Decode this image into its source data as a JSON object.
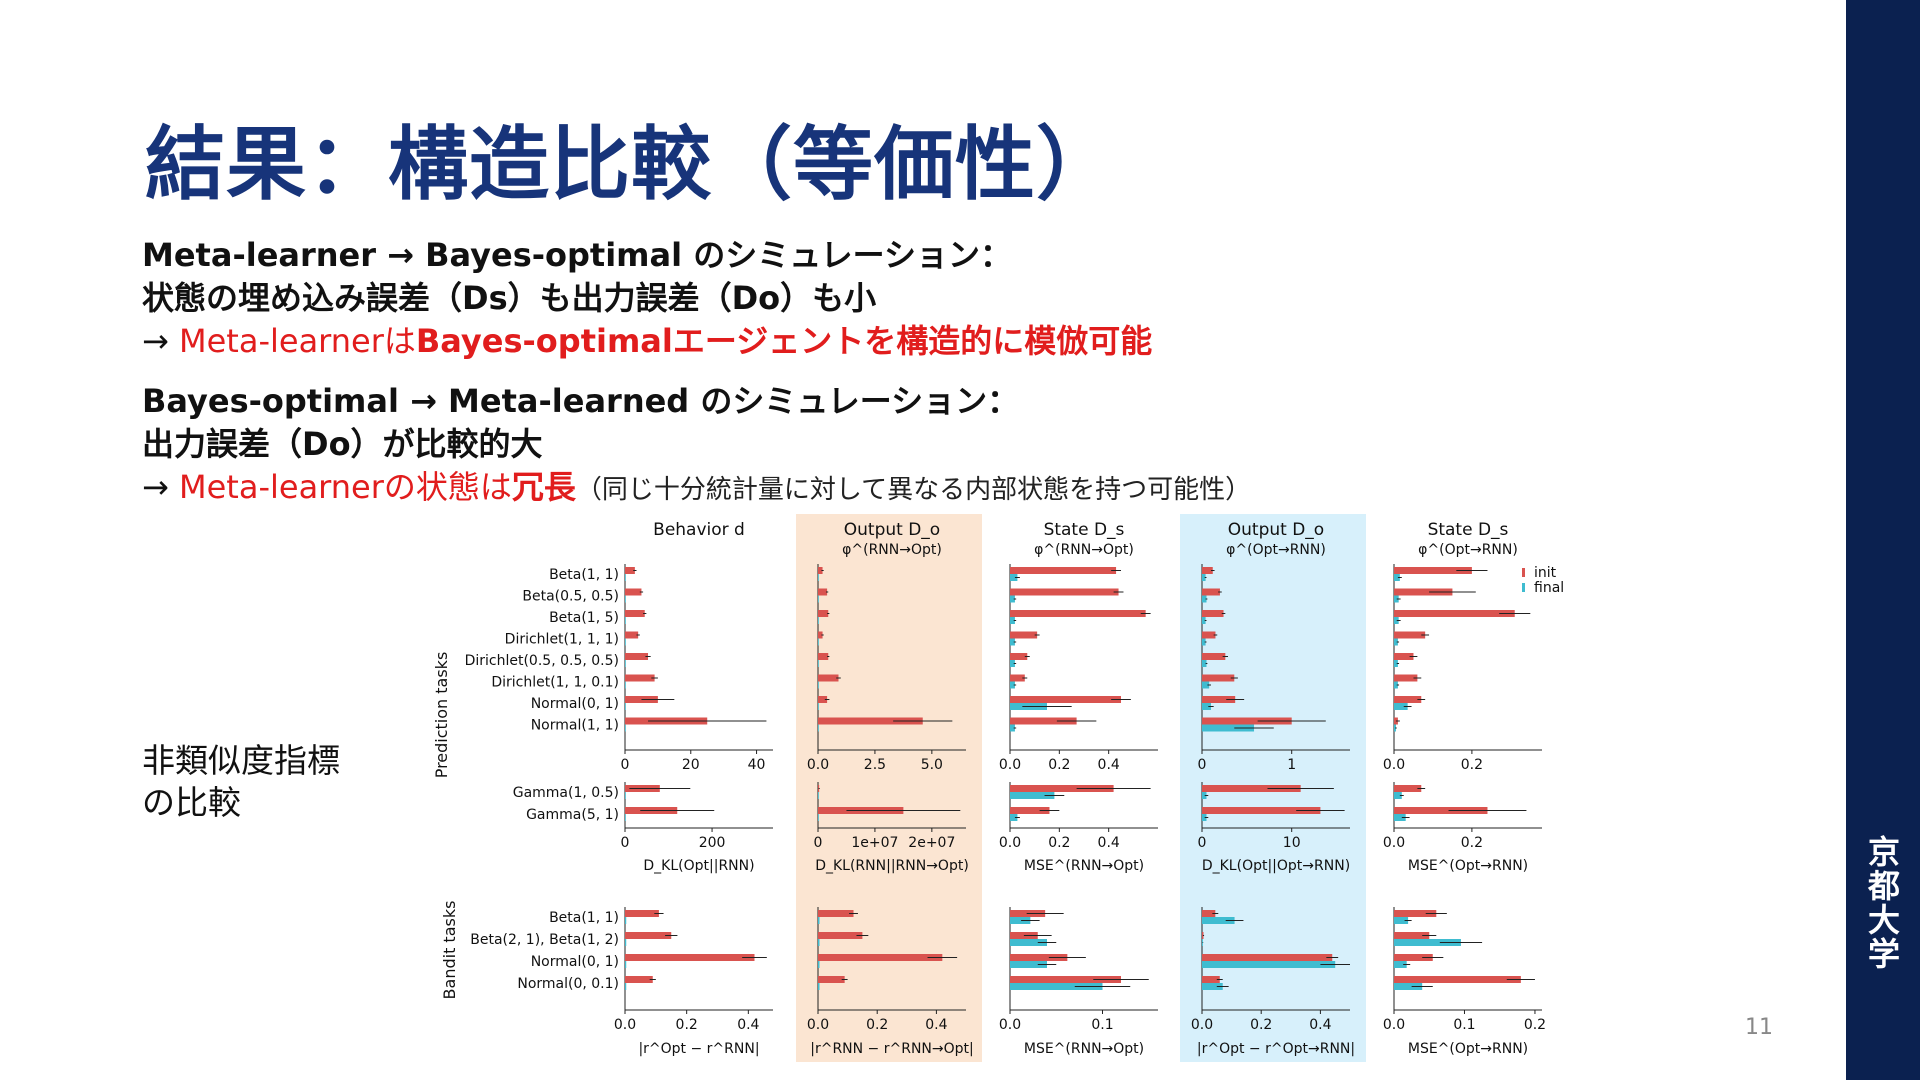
{
  "slide": {
    "title": "結果：構造比較（等価性）",
    "l1": "Meta-learner → Bayes-optimal のシミュレーション：",
    "l2": "状態の埋め込み誤差（Ds）も出力誤差（Do）も小",
    "l3_arrow": "→ ",
    "l3_a": "Meta-learnerは",
    "l3_b": "Bayes-optimalエージェントを構造的に模倣可能",
    "l4": " Bayes-optimal → Meta-learned のシミュレーション：",
    "l5": "出力誤差（Do）が比較的大",
    "l6_arrow": "→ ",
    "l6_a": "Meta-learnerの状態は",
    "l6_b": "冗長",
    "l6_c": "（同じ十分統計量に対して異なる内部状態を持つ可能性）",
    "side_label_1": "非類似度指標",
    "side_label_2": "の比較",
    "page_number": "11",
    "university": [
      "京",
      "都",
      "大",
      "学"
    ]
  },
  "chart_data": {
    "type": "bar",
    "orientation": "horizontal",
    "legend": {
      "position": "top-right",
      "entries": [
        {
          "name": "init",
          "color": "#d9534f"
        },
        {
          "name": "final",
          "color": "#3fbcd0"
        }
      ]
    },
    "colors": {
      "init": "#d9534f",
      "final": "#3fbcd0",
      "highlight_orange": "#fbe5d2",
      "highlight_blue": "#d7f0fb"
    },
    "group_labels": {
      "prediction": "Prediction tasks",
      "bandit": "Bandit tasks"
    },
    "row_groups": {
      "prediction": [
        "Beta(1, 1)",
        "Beta(0.5, 0.5)",
        "Beta(1, 5)",
        "Dirichlet(1, 1, 1)",
        "Dirichlet(0.5, 0.5, 0.5)",
        "Dirichlet(1, 1, 0.1)",
        "Normal(0, 1)",
        "Normal(1, 1)"
      ],
      "gamma": [
        "Gamma(1, 0.5)",
        "Gamma(5, 1)"
      ],
      "bandit": [
        "Beta(1, 1)",
        "Beta(2, 1), Beta(1, 2)",
        "Normal(0, 1)",
        "Normal(0, 0.1)"
      ]
    },
    "columns": [
      {
        "header": "Behavior d",
        "subheader": "",
        "highlight": "",
        "xlabel_pred": "D_KL(Opt||RNN)",
        "xlabel_bandit": "|r^Opt − r^RNN|",
        "prediction": {
          "xlim": [
            0,
            45
          ],
          "ticks": [
            0,
            20,
            40
          ],
          "tick_labels": [
            "0",
            "20",
            "40"
          ],
          "init": [
            3,
            5,
            6,
            4,
            7,
            9,
            10,
            25
          ],
          "init_err": [
            0.5,
            0.5,
            0.5,
            0.5,
            0.8,
            1,
            5,
            18
          ],
          "final": [
            0.1,
            0.1,
            0.1,
            0.1,
            0.1,
            0.1,
            0.1,
            0.1
          ],
          "final_err": [
            0,
            0,
            0,
            0,
            0,
            0,
            0,
            0
          ]
        },
        "gamma": {
          "xlim": [
            0,
            340
          ],
          "ticks": [
            0,
            200
          ],
          "tick_labels": [
            "0",
            "200"
          ],
          "init": [
            80,
            120
          ],
          "init_err": [
            70,
            85
          ],
          "final": [
            1,
            1
          ],
          "final_err": [
            0,
            0
          ]
        },
        "bandit": {
          "xlim": [
            0,
            0.48
          ],
          "ticks": [
            0,
            0.2,
            0.4
          ],
          "tick_labels": [
            "0.0",
            "0.2",
            "0.4"
          ],
          "init": [
            0.11,
            0.15,
            0.42,
            0.09
          ],
          "init_err": [
            0.015,
            0.02,
            0.04,
            0.01
          ],
          "final": [
            0.004,
            0.004,
            0.004,
            0.004
          ],
          "final_err": [
            0,
            0,
            0,
            0
          ]
        }
      },
      {
        "header": "Output D_o",
        "subheader": "φ^(RNN→Opt)",
        "highlight": "orange",
        "xlabel_pred": "D_KL(RNN||RNN→Opt)",
        "xlabel_bandit": "|r^RNN − r^RNN→Opt|",
        "prediction": {
          "xlim": [
            0,
            6.5
          ],
          "ticks": [
            0,
            2.5,
            5
          ],
          "tick_labels": [
            "0.0",
            "2.5",
            "5.0"
          ],
          "init": [
            0.2,
            0.4,
            0.45,
            0.2,
            0.45,
            0.9,
            0.4,
            4.6
          ],
          "init_err": [
            0.05,
            0.05,
            0.05,
            0.05,
            0.05,
            0.1,
            0.1,
            1.3
          ],
          "final": [
            0.02,
            0.02,
            0.02,
            0.02,
            0.02,
            0.02,
            0.02,
            0.02
          ],
          "final_err": [
            0,
            0,
            0,
            0,
            0,
            0,
            0,
            0
          ]
        },
        "gamma": {
          "xlim": [
            0,
            26000000
          ],
          "ticks": [
            0,
            10000000,
            20000000
          ],
          "tick_labels": [
            "0",
            "1e+07",
            "2e+07"
          ],
          "init": [
            200000,
            15000000
          ],
          "init_err": [
            100000,
            10000000
          ],
          "final": [
            0,
            0
          ],
          "final_err": [
            0,
            0
          ]
        },
        "bandit": {
          "xlim": [
            0,
            0.5
          ],
          "ticks": [
            0,
            0.2,
            0.4
          ],
          "tick_labels": [
            "0.0",
            "0.2",
            "0.4"
          ],
          "init": [
            0.12,
            0.15,
            0.42,
            0.09
          ],
          "init_err": [
            0.015,
            0.02,
            0.05,
            0.01
          ],
          "final": [
            0.005,
            0.005,
            0.005,
            0.005
          ],
          "final_err": [
            0,
            0,
            0,
            0
          ]
        }
      },
      {
        "header": "State D_s",
        "subheader": "φ^(RNN→Opt)",
        "highlight": "",
        "xlabel_pred": "MSE^(RNN→Opt)",
        "xlabel_bandit": "MSE^(RNN→Opt)",
        "prediction": {
          "xlim": [
            0,
            0.6
          ],
          "ticks": [
            0,
            0.2,
            0.4
          ],
          "tick_labels": [
            "0.0",
            "0.2",
            "0.4"
          ],
          "init": [
            0.43,
            0.44,
            0.55,
            0.11,
            0.07,
            0.06,
            0.45,
            0.27
          ],
          "init_err": [
            0.02,
            0.02,
            0.02,
            0.01,
            0.01,
            0.01,
            0.04,
            0.08
          ],
          "final": [
            0.03,
            0.02,
            0.02,
            0.02,
            0.02,
            0.02,
            0.15,
            0.02
          ],
          "final_err": [
            0.01,
            0.005,
            0.005,
            0.005,
            0.005,
            0.005,
            0.1,
            0.005
          ]
        },
        "gamma": {
          "xlim": [
            0,
            0.6
          ],
          "ticks": [
            0,
            0.2,
            0.4
          ],
          "tick_labels": [
            "0.0",
            "0.2",
            "0.4"
          ],
          "init": [
            0.42,
            0.16
          ],
          "init_err": [
            0.15,
            0.04
          ],
          "final": [
            0.18,
            0.03
          ],
          "final_err": [
            0.04,
            0.01
          ]
        },
        "bandit": {
          "xlim": [
            0,
            0.16
          ],
          "ticks": [
            0,
            0.1
          ],
          "tick_labels": [
            "0.0",
            "0.1"
          ],
          "init": [
            0.038,
            0.03,
            0.062,
            0.12
          ],
          "init_err": [
            0.02,
            0.015,
            0.02,
            0.03
          ],
          "final": [
            0.022,
            0.04,
            0.04,
            0.1
          ],
          "final_err": [
            0.01,
            0.01,
            0.01,
            0.03
          ]
        }
      },
      {
        "header": "Output D_o",
        "subheader": "φ^(Opt→RNN)",
        "highlight": "blue",
        "xlabel_pred": "D_KL(Opt||Opt→RNN)",
        "xlabel_bandit": "|r^Opt − r^Opt→RNN|",
        "prediction": {
          "xlim": [
            0,
            1.65
          ],
          "ticks": [
            0,
            1
          ],
          "tick_labels": [
            "0",
            "1"
          ],
          "init": [
            0.12,
            0.2,
            0.24,
            0.15,
            0.26,
            0.36,
            0.37,
            1.0
          ],
          "init_err": [
            0.02,
            0.02,
            0.02,
            0.02,
            0.03,
            0.04,
            0.1,
            0.38
          ],
          "final": [
            0.04,
            0.05,
            0.04,
            0.04,
            0.05,
            0.08,
            0.1,
            0.58
          ],
          "final_err": [
            0.01,
            0.01,
            0.01,
            0.01,
            0.01,
            0.02,
            0.03,
            0.22
          ]
        },
        "gamma": {
          "xlim": [
            0,
            16.5
          ],
          "ticks": [
            0,
            10
          ],
          "tick_labels": [
            "0",
            "10"
          ],
          "init": [
            11,
            13.2
          ],
          "init_err": [
            3.7,
            2.7
          ],
          "final": [
            0.5,
            0.5
          ],
          "final_err": [
            0.2,
            0.2
          ]
        },
        "bandit": {
          "xlim": [
            0,
            0.5
          ],
          "ticks": [
            0,
            0.2,
            0.4
          ],
          "tick_labels": [
            "0.0",
            "0.2",
            "0.4"
          ],
          "init": [
            0.045,
            0.005,
            0.44,
            0.06
          ],
          "init_err": [
            0.01,
            0.002,
            0.02,
            0.01
          ],
          "final": [
            0.11,
            0.003,
            0.45,
            0.07
          ],
          "final_err": [
            0.03,
            0.001,
            0.05,
            0.02
          ]
        }
      },
      {
        "header": "State D_s",
        "subheader": "φ^(Opt→RNN)",
        "highlight": "",
        "xlabel_pred": "MSE^(Opt→RNN)",
        "xlabel_bandit": "MSE^(Opt→RNN)",
        "prediction": {
          "xlim": [
            0,
            0.38
          ],
          "ticks": [
            0,
            0.2
          ],
          "tick_labels": [
            "0.0",
            "0.2"
          ],
          "init": [
            0.2,
            0.15,
            0.31,
            0.08,
            0.05,
            0.06,
            0.07,
            0.01
          ],
          "init_err": [
            0.04,
            0.06,
            0.04,
            0.01,
            0.01,
            0.01,
            0.01,
            0.005
          ],
          "final": [
            0.015,
            0.012,
            0.012,
            0.01,
            0.01,
            0.01,
            0.035,
            0.005
          ],
          "final_err": [
            0.005,
            0.005,
            0.005,
            0.003,
            0.003,
            0.003,
            0.01,
            0.002
          ]
        },
        "gamma": {
          "xlim": [
            0,
            0.38
          ],
          "ticks": [
            0,
            0.2
          ],
          "tick_labels": [
            "0.0",
            "0.2"
          ],
          "init": [
            0.07,
            0.24
          ],
          "init_err": [
            0.01,
            0.1
          ],
          "final": [
            0.02,
            0.03
          ],
          "final_err": [
            0.005,
            0.01
          ]
        },
        "bandit": {
          "xlim": [
            0,
            0.21
          ],
          "ticks": [
            0,
            0.1,
            0.2
          ],
          "tick_labels": [
            "0.0",
            "0.1",
            "0.2"
          ],
          "init": [
            0.06,
            0.05,
            0.055,
            0.18
          ],
          "init_err": [
            0.015,
            0.01,
            0.015,
            0.02
          ],
          "final": [
            0.02,
            0.095,
            0.018,
            0.04
          ],
          "final_err": [
            0.005,
            0.03,
            0.005,
            0.015
          ]
        }
      }
    ]
  }
}
